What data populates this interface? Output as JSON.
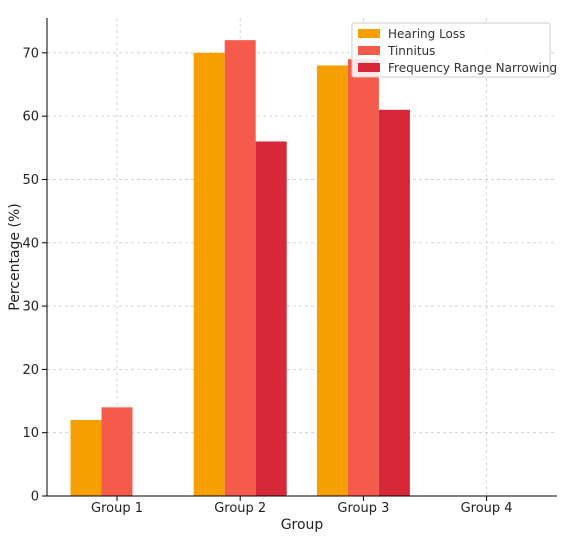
{
  "chart_data": {
    "type": "bar",
    "title": "",
    "xlabel": "Group",
    "ylabel": "Percentage (%)",
    "categories": [
      "Group 1",
      "Group 2",
      "Group 3",
      "Group 4"
    ],
    "series": [
      {
        "name": "Hearing Loss",
        "color": "#F5A000",
        "values": [
          12,
          70,
          68,
          null
        ]
      },
      {
        "name": "Tinnitus",
        "color": "#F45B4B",
        "values": [
          14,
          72,
          69,
          null
        ]
      },
      {
        "name": "Frequency Range Narrowing",
        "color": "#D7283A",
        "values": [
          null,
          56,
          61,
          null
        ]
      }
    ],
    "ylim": [
      0,
      75.5
    ],
    "yticks": [
      0,
      10,
      20,
      30,
      40,
      50,
      60,
      70
    ],
    "grid": true,
    "legend_position": "top-right"
  }
}
